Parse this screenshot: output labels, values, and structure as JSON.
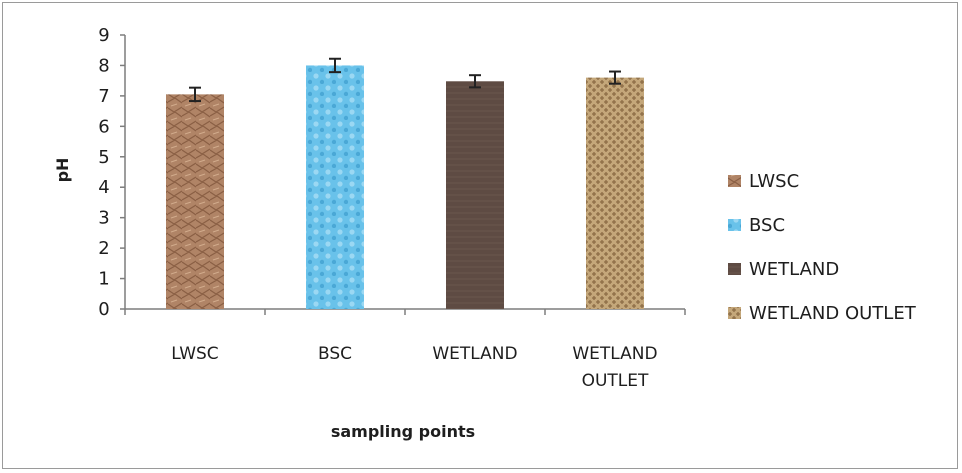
{
  "chart_data": {
    "type": "bar",
    "title": "",
    "xlabel": "sampling points",
    "ylabel": "pH",
    "ylim": [
      0,
      9
    ],
    "yticks": [
      0,
      1,
      2,
      3,
      4,
      5,
      6,
      7,
      8,
      9
    ],
    "grid": false,
    "legend_position": "right",
    "categories": [
      {
        "label": [
          "LWSC"
        ],
        "value": 7.05,
        "error": 0.22,
        "legend": "LWSC",
        "color": "#b08466"
      },
      {
        "label": [
          "BSC"
        ],
        "value": 8.0,
        "error": 0.22,
        "legend": "BSC",
        "color": "#69c2ea"
      },
      {
        "label": [
          "WETLAND"
        ],
        "value": 7.48,
        "error": 0.2,
        "legend": "WETLAND",
        "color": "#5e4b43"
      },
      {
        "label": [
          "WETLAND",
          "OUTLET"
        ],
        "value": 7.6,
        "error": 0.2,
        "legend": "WETLAND OUTLET",
        "color": "#b89a6c"
      }
    ]
  }
}
